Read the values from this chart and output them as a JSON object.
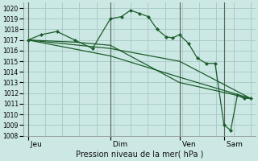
{
  "background_color": "#cce8e4",
  "grid_color": "#aaccc8",
  "line_color": "#1a5c2a",
  "marker_color": "#1a5c2a",
  "xlabel": "Pression niveau de la mer( hPa )",
  "ylim": [
    1008,
    1020.5
  ],
  "yticks": [
    1008,
    1009,
    1010,
    1011,
    1012,
    1013,
    1014,
    1015,
    1016,
    1017,
    1018,
    1019,
    1020
  ],
  "xtick_labels": [
    " Jeu",
    " Dim",
    " Ven",
    " Sam"
  ],
  "xtick_positions": [
    0.0,
    0.37,
    0.68,
    0.88
  ],
  "vline_positions": [
    0.0,
    0.37,
    0.68,
    0.88
  ],
  "series1_x": [
    0.0,
    0.06,
    0.13,
    0.21,
    0.29,
    0.37,
    0.42,
    0.46,
    0.5,
    0.54,
    0.58,
    0.62,
    0.65,
    0.68,
    0.72,
    0.76,
    0.8,
    0.84,
    0.88,
    0.91,
    0.94,
    0.97,
    1.0
  ],
  "series1_y": [
    1017.0,
    1017.5,
    1017.8,
    1017.0,
    1016.2,
    1019.0,
    1019.2,
    1019.8,
    1019.5,
    1019.2,
    1018.0,
    1017.3,
    1017.2,
    1017.5,
    1016.7,
    1015.3,
    1014.8,
    1014.8,
    1009.0,
    1008.5,
    1011.8,
    1011.5,
    1011.5
  ],
  "series2_x": [
    0.0,
    0.37,
    0.68,
    1.0
  ],
  "series2_y": [
    1017.0,
    1016.2,
    1015.0,
    1011.5
  ],
  "series3_x": [
    0.0,
    0.37,
    0.68,
    1.0
  ],
  "series3_y": [
    1017.0,
    1015.5,
    1013.5,
    1011.5
  ],
  "series4_x": [
    0.0,
    0.21,
    0.37,
    0.68,
    1.0
  ],
  "series4_y": [
    1017.0,
    1016.8,
    1016.5,
    1013.0,
    1011.5
  ]
}
